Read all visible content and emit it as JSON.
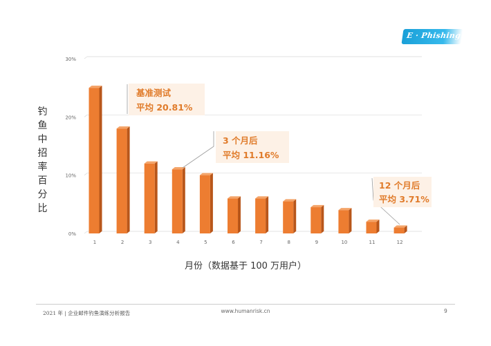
{
  "logo": {
    "text": "E · Phishing"
  },
  "chart_data": {
    "type": "bar",
    "categories": [
      "1",
      "2",
      "3",
      "4",
      "5",
      "6",
      "7",
      "8",
      "9",
      "10",
      "11",
      "12"
    ],
    "values": [
      25,
      18,
      12,
      11,
      10,
      6,
      6,
      5.5,
      4.5,
      4,
      2,
      1
    ],
    "ylim": [
      0,
      30
    ],
    "yticks": [
      "0%",
      "10%",
      "20%",
      "30%"
    ],
    "ytick_values": [
      0,
      10,
      20,
      30
    ],
    "ylabel": "钓鱼中招率百分比",
    "xlabel": "月份（数据基于 100 万用户）",
    "bar_color": "#ed7d31",
    "bar_side_color": "#b8561a",
    "bar_top_color": "#f4a469",
    "grid": true,
    "annotations": [
      {
        "line1": "基准测试",
        "line2": "平均 20.81%",
        "category_index": 0
      },
      {
        "line1": "3 个月后",
        "line2": "平均 11.16%",
        "category_index": 3
      },
      {
        "line1": "12 个月后",
        "line2": "平均 3.71%",
        "category_index": 11
      }
    ]
  },
  "footer": {
    "left": "2021 年 | 企业邮件钓鱼演练分析报告",
    "center": "www.humanrisk.cn",
    "page": "9"
  }
}
